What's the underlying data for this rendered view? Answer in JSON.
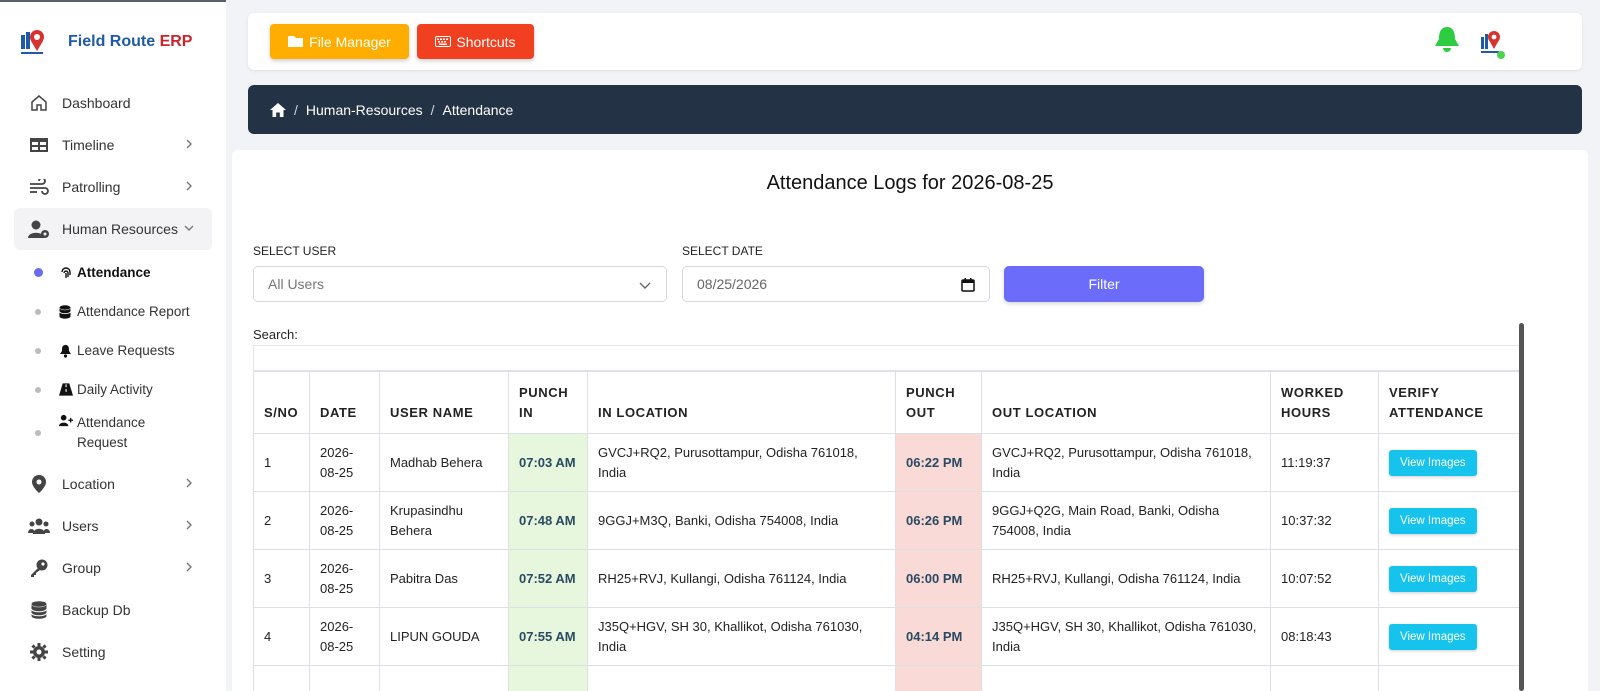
{
  "brand": {
    "name": "Field Route",
    "suffix": "ERP"
  },
  "sidebar": {
    "items": [
      {
        "label": "Dashboard",
        "icon": "home-icon"
      },
      {
        "label": "Timeline",
        "icon": "table-icon"
      },
      {
        "label": "Patrolling",
        "icon": "wind-icon"
      },
      {
        "label": "Human Resources",
        "icon": "user-gear-icon"
      }
    ],
    "sub_items": [
      {
        "label": "Attendance",
        "icon": "fingerprint-icon"
      },
      {
        "label": "Attendance Report",
        "icon": "database-icon"
      },
      {
        "label": "Leave Requests",
        "icon": "bell-icon"
      },
      {
        "label": "Daily Activity",
        "icon": "road-icon"
      },
      {
        "label": "Attendance Request",
        "icon": "user-plus-icon"
      }
    ],
    "items_after": [
      {
        "label": "Location",
        "icon": "map-pin-icon"
      },
      {
        "label": "Users",
        "icon": "users-icon"
      },
      {
        "label": "Group",
        "icon": "key-icon"
      },
      {
        "label": "Backup Db",
        "icon": "database-icon"
      },
      {
        "label": "Setting",
        "icon": "gear-icon"
      }
    ]
  },
  "topbar": {
    "file_manager": "File Manager",
    "shortcuts": "Shortcuts"
  },
  "breadcrumb": {
    "section": "Human-Resources",
    "page": "Attendance"
  },
  "main": {
    "title": "Attendance Logs for 2026-08-25",
    "select_user_label": "SELECT USER",
    "select_user_value": "All Users",
    "select_date_label": "SELECT DATE",
    "select_date_value": "08/25/2026",
    "filter_label": "Filter",
    "search_label": "Search:"
  },
  "table": {
    "headers": [
      "S/NO",
      "DATE",
      "USER NAME",
      "PUNCH IN",
      "IN LOCATION",
      "PUNCH OUT",
      "OUT LOCATION",
      "WORKED HOURS",
      "VERIFY ATTENDANCE"
    ],
    "rows": [
      {
        "sno": "1",
        "date": "2026-08-25",
        "user": "Madhab Behera",
        "punch_in": "07:03 AM",
        "in_location": "GVCJ+RQ2, Purusottampur, Odisha 761018, India",
        "punch_out": "06:22 PM",
        "out_location": "GVCJ+RQ2, Purusottampur, Odisha 761018, India",
        "worked": "11:19:37",
        "action": "View Images"
      },
      {
        "sno": "2",
        "date": "2026-08-25",
        "user": "Krupasindhu Behera",
        "punch_in": "07:48 AM",
        "in_location": "9GGJ+M3Q, Banki, Odisha 754008, India",
        "punch_out": "06:26 PM",
        "out_location": "9GGJ+Q2G, Main Road, Banki, Odisha 754008, India",
        "worked": "10:37:32",
        "action": "View Images"
      },
      {
        "sno": "3",
        "date": "2026-08-25",
        "user": "Pabitra Das",
        "punch_in": "07:52 AM",
        "in_location": "RH25+RVJ, Kullangi, Odisha 761124, India",
        "punch_out": "06:00 PM",
        "out_location": "RH25+RVJ, Kullangi, Odisha 761124, India",
        "worked": "10:07:52",
        "action": "View Images"
      },
      {
        "sno": "4",
        "date": "2026-08-25",
        "user": "LIPUN GOUDA",
        "punch_in": "07:55 AM",
        "in_location": "J35Q+HGV, SH 30, Khallikot, Odisha 761030, India",
        "punch_out": "04:14 PM",
        "out_location": "J35Q+HGV, SH 30, Khallikot, Odisha 761030, India",
        "worked": "08:18:43",
        "action": "View Images"
      }
    ]
  }
}
